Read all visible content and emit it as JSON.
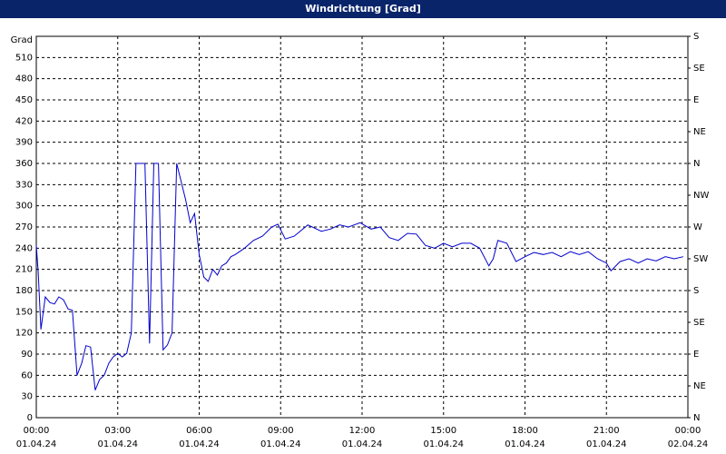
{
  "chart_data": {
    "type": "line",
    "title": "Windrichtung [Grad]",
    "ylabel": "Grad",
    "xlim": [
      0,
      24
    ],
    "ylim": [
      0,
      540
    ],
    "y2lim": [
      0,
      540
    ],
    "grid": true,
    "xticks": [
      {
        "value": 0,
        "label": "00:00",
        "date": "01.04.24"
      },
      {
        "value": 3,
        "label": "03:00",
        "date": "01.04.24"
      },
      {
        "value": 6,
        "label": "06:00",
        "date": "01.04.24"
      },
      {
        "value": 9,
        "label": "09:00",
        "date": "01.04.24"
      },
      {
        "value": 12,
        "label": "12:00",
        "date": "01.04.24"
      },
      {
        "value": 15,
        "label": "15:00",
        "date": "01.04.24"
      },
      {
        "value": 18,
        "label": "18:00",
        "date": "01.04.24"
      },
      {
        "value": 21,
        "label": "21:00",
        "date": "01.04.24"
      },
      {
        "value": 24,
        "label": "00:00",
        "date": "02.04.24"
      }
    ],
    "yticks": [
      0,
      30,
      60,
      90,
      120,
      150,
      180,
      210,
      240,
      270,
      300,
      330,
      360,
      390,
      420,
      450,
      480,
      510
    ],
    "y2ticks": [
      {
        "value": 0,
        "label": "N"
      },
      {
        "value": 45,
        "label": "NE"
      },
      {
        "value": 90,
        "label": "E"
      },
      {
        "value": 135,
        "label": "SE"
      },
      {
        "value": 180,
        "label": "S"
      },
      {
        "value": 225,
        "label": "SW"
      },
      {
        "value": 270,
        "label": "W"
      },
      {
        "value": 315,
        "label": "NW"
      },
      {
        "value": 360,
        "label": "N"
      },
      {
        "value": 405,
        "label": "NE"
      },
      {
        "value": 450,
        "label": "E"
      },
      {
        "value": 495,
        "label": "SE"
      },
      {
        "value": 540,
        "label": "S"
      }
    ],
    "series": [
      {
        "color": "#0000cc",
        "x": [
          0,
          0.07,
          0.17,
          0.33,
          0.5,
          0.67,
          0.83,
          1.0,
          1.17,
          1.33,
          1.5,
          1.67,
          1.83,
          2.0,
          2.17,
          2.33,
          2.5,
          2.67,
          2.83,
          3.0,
          3.17,
          3.33,
          3.5,
          3.67,
          4.0,
          4.17,
          4.33,
          4.5,
          4.67,
          4.83,
          5.0,
          5.17,
          5.5,
          5.67,
          5.83,
          6.0,
          6.17,
          6.33,
          6.5,
          6.67,
          6.83,
          7.0,
          7.17,
          7.33,
          7.67,
          8.0,
          8.33,
          8.67,
          8.9,
          9.17,
          9.5,
          10.0,
          10.5,
          10.83,
          11.17,
          11.5,
          11.93,
          12.33,
          12.67,
          13.0,
          13.33,
          13.67,
          14.0,
          14.33,
          14.67,
          15.0,
          15.33,
          15.67,
          16.0,
          16.33,
          16.67,
          16.83,
          17.0,
          17.33,
          17.67,
          18.0,
          18.33,
          18.67,
          19.0,
          19.33,
          19.67,
          20.0,
          20.33,
          20.67,
          21.0,
          21.17,
          21.5,
          21.83,
          22.17,
          22.5,
          22.83,
          23.17,
          23.5,
          23.83
        ],
        "values": [
          244,
          206,
          125,
          171,
          163,
          161,
          171,
          167,
          154,
          152,
          60,
          77,
          102,
          100,
          39,
          54,
          60,
          77,
          86,
          91,
          86,
          91,
          120,
          360,
          360,
          105,
          360,
          360,
          96,
          103,
          120,
          360,
          309,
          276,
          289,
          231,
          199,
          193,
          210,
          202,
          215,
          219,
          228,
          231,
          240,
          251,
          257,
          270,
          274,
          253,
          257,
          273,
          264,
          267,
          273,
          270,
          276,
          267,
          270,
          255,
          251,
          261,
          260,
          244,
          240,
          247,
          242,
          247,
          247,
          240,
          215,
          225,
          251,
          247,
          221,
          228,
          234,
          231,
          234,
          228,
          235,
          231,
          235,
          225,
          219,
          208,
          221,
          225,
          219,
          225,
          222,
          228,
          225,
          228
        ]
      }
    ]
  }
}
